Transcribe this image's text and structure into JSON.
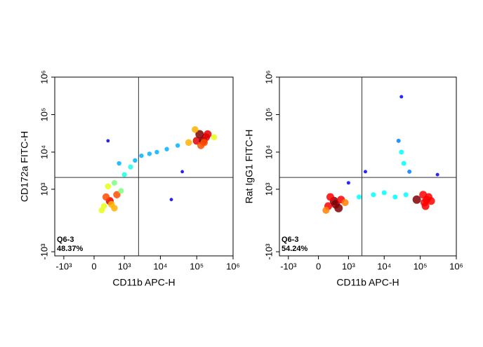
{
  "chart_data": [
    {
      "type": "scatter",
      "scale": "biexponential",
      "xlabel": "CD11b APC-H",
      "ylabel": "CD172a FITC-H",
      "xlim": [
        -1800,
        1000000
      ],
      "ylim": [
        -1300,
        1000000
      ],
      "xticks": [
        {
          "value": -1000,
          "label": "-10³"
        },
        0,
        {
          "value": 1000,
          "label": "10³"
        },
        {
          "value": 10000,
          "label": "10⁴"
        },
        {
          "value": 100000,
          "label": "10⁵"
        },
        {
          "value": 1000000,
          "label": "10⁶"
        }
      ],
      "yticks": [
        {
          "value": -1000,
          "label": "-10³"
        },
        {
          "value": 1000,
          "label": "10³"
        },
        {
          "value": 10000,
          "label": "10⁴"
        },
        {
          "value": 100000,
          "label": "10⁵"
        },
        {
          "value": 1000000,
          "label": "10⁶"
        }
      ],
      "gate_x": 2500,
      "gate_y": 2100,
      "gate_name": "Q6-3",
      "gate_percent": "48.37%",
      "x": [
        200,
        350,
        500,
        250,
        400,
        600,
        150,
        800,
        300,
        500,
        1000,
        1500,
        2000,
        3000,
        5000,
        8000,
        15000,
        30000,
        60000,
        100000,
        150000,
        180000,
        130000,
        200000,
        120000,
        160000,
        90000,
        300000,
        700,
        20000,
        40000,
        300
      ],
      "y": [
        300,
        450,
        250,
        600,
        350,
        700,
        200,
        900,
        1200,
        1500,
        2500,
        4000,
        6000,
        8000,
        9000,
        10000,
        12000,
        15000,
        18000,
        20000,
        20000,
        25000,
        15000,
        30000,
        30000,
        18000,
        40000,
        25000,
        5000,
        500,
        3000,
        20000
      ]
    },
    {
      "type": "scatter",
      "scale": "biexponential",
      "xlabel": "CD11b APC-H",
      "ylabel": "Rat IgG1 FITC-H",
      "xlim": [
        -1800,
        1000000
      ],
      "ylim": [
        -1300,
        1000000
      ],
      "xticks": [
        {
          "value": -1000,
          "label": "-10³"
        },
        0,
        {
          "value": 1000,
          "label": "10³"
        },
        {
          "value": 10000,
          "label": "10⁴"
        },
        {
          "value": 100000,
          "label": "10⁵"
        },
        {
          "value": 1000000,
          "label": "10⁶"
        }
      ],
      "yticks": [
        {
          "value": -1000,
          "label": "-10³"
        },
        {
          "value": 1000,
          "label": "10³"
        },
        {
          "value": 10000,
          "label": "10⁴"
        },
        {
          "value": 100000,
          "label": "10⁵"
        },
        {
          "value": 1000000,
          "label": "10⁶"
        }
      ],
      "gate_x": 2400,
      "gate_y": 2100,
      "gate_name": "Q6-3",
      "gate_percent": "54.24%",
      "x": [
        200,
        350,
        500,
        250,
        400,
        600,
        150,
        800,
        2000,
        5000,
        10000,
        20000,
        40000,
        80000,
        150000,
        130000,
        170000,
        120000,
        200000,
        140000,
        30000,
        25000,
        35000,
        50000,
        3000,
        300000,
        30000,
        1000
      ],
      "y": [
        300,
        450,
        250,
        600,
        350,
        500,
        200,
        400,
        600,
        700,
        800,
        600,
        700,
        500,
        500,
        400,
        600,
        700,
        450,
        300,
        10000,
        20000,
        5000,
        3000,
        3000,
        2500,
        300000,
        1500
      ]
    }
  ]
}
